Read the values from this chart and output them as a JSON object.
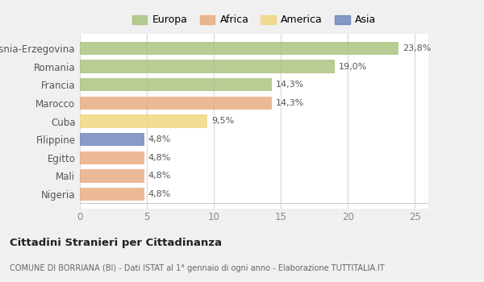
{
  "categories": [
    "Nigeria",
    "Mali",
    "Egitto",
    "Filippine",
    "Cuba",
    "Marocco",
    "Francia",
    "Romania",
    "Bosnia-Erzegovina"
  ],
  "values": [
    4.8,
    4.8,
    4.8,
    4.8,
    9.5,
    14.3,
    14.3,
    19.0,
    23.8
  ],
  "labels": [
    "4,8%",
    "4,8%",
    "4,8%",
    "4,8%",
    "9,5%",
    "14,3%",
    "14,3%",
    "19,0%",
    "23,8%"
  ],
  "colors": [
    "#E8A87C",
    "#E8A87C",
    "#E8A87C",
    "#6B82B8",
    "#F0D57A",
    "#E8A87C",
    "#A8C07A",
    "#A8C07A",
    "#A8C07A"
  ],
  "legend_labels": [
    "Europa",
    "Africa",
    "America",
    "Asia"
  ],
  "legend_colors": [
    "#A8C07A",
    "#E8A87C",
    "#F0D57A",
    "#6B82B8"
  ],
  "xlim": [
    0,
    26
  ],
  "xticks": [
    0,
    5,
    10,
    15,
    20,
    25
  ],
  "title_bold": "Cittadini Stranieri per Cittadinanza",
  "subtitle": "COMUNE DI BORRIANA (BI) - Dati ISTAT al 1° gennaio di ogni anno - Elaborazione TUTTITALIA.IT",
  "bg_color": "#f0f0f0",
  "plot_bg_color": "#ffffff",
  "bar_alpha": 0.8,
  "grid_color": "#e8e8e8",
  "label_fontsize": 8,
  "tick_fontsize": 8.5,
  "legend_fontsize": 9,
  "bar_height": 0.72
}
